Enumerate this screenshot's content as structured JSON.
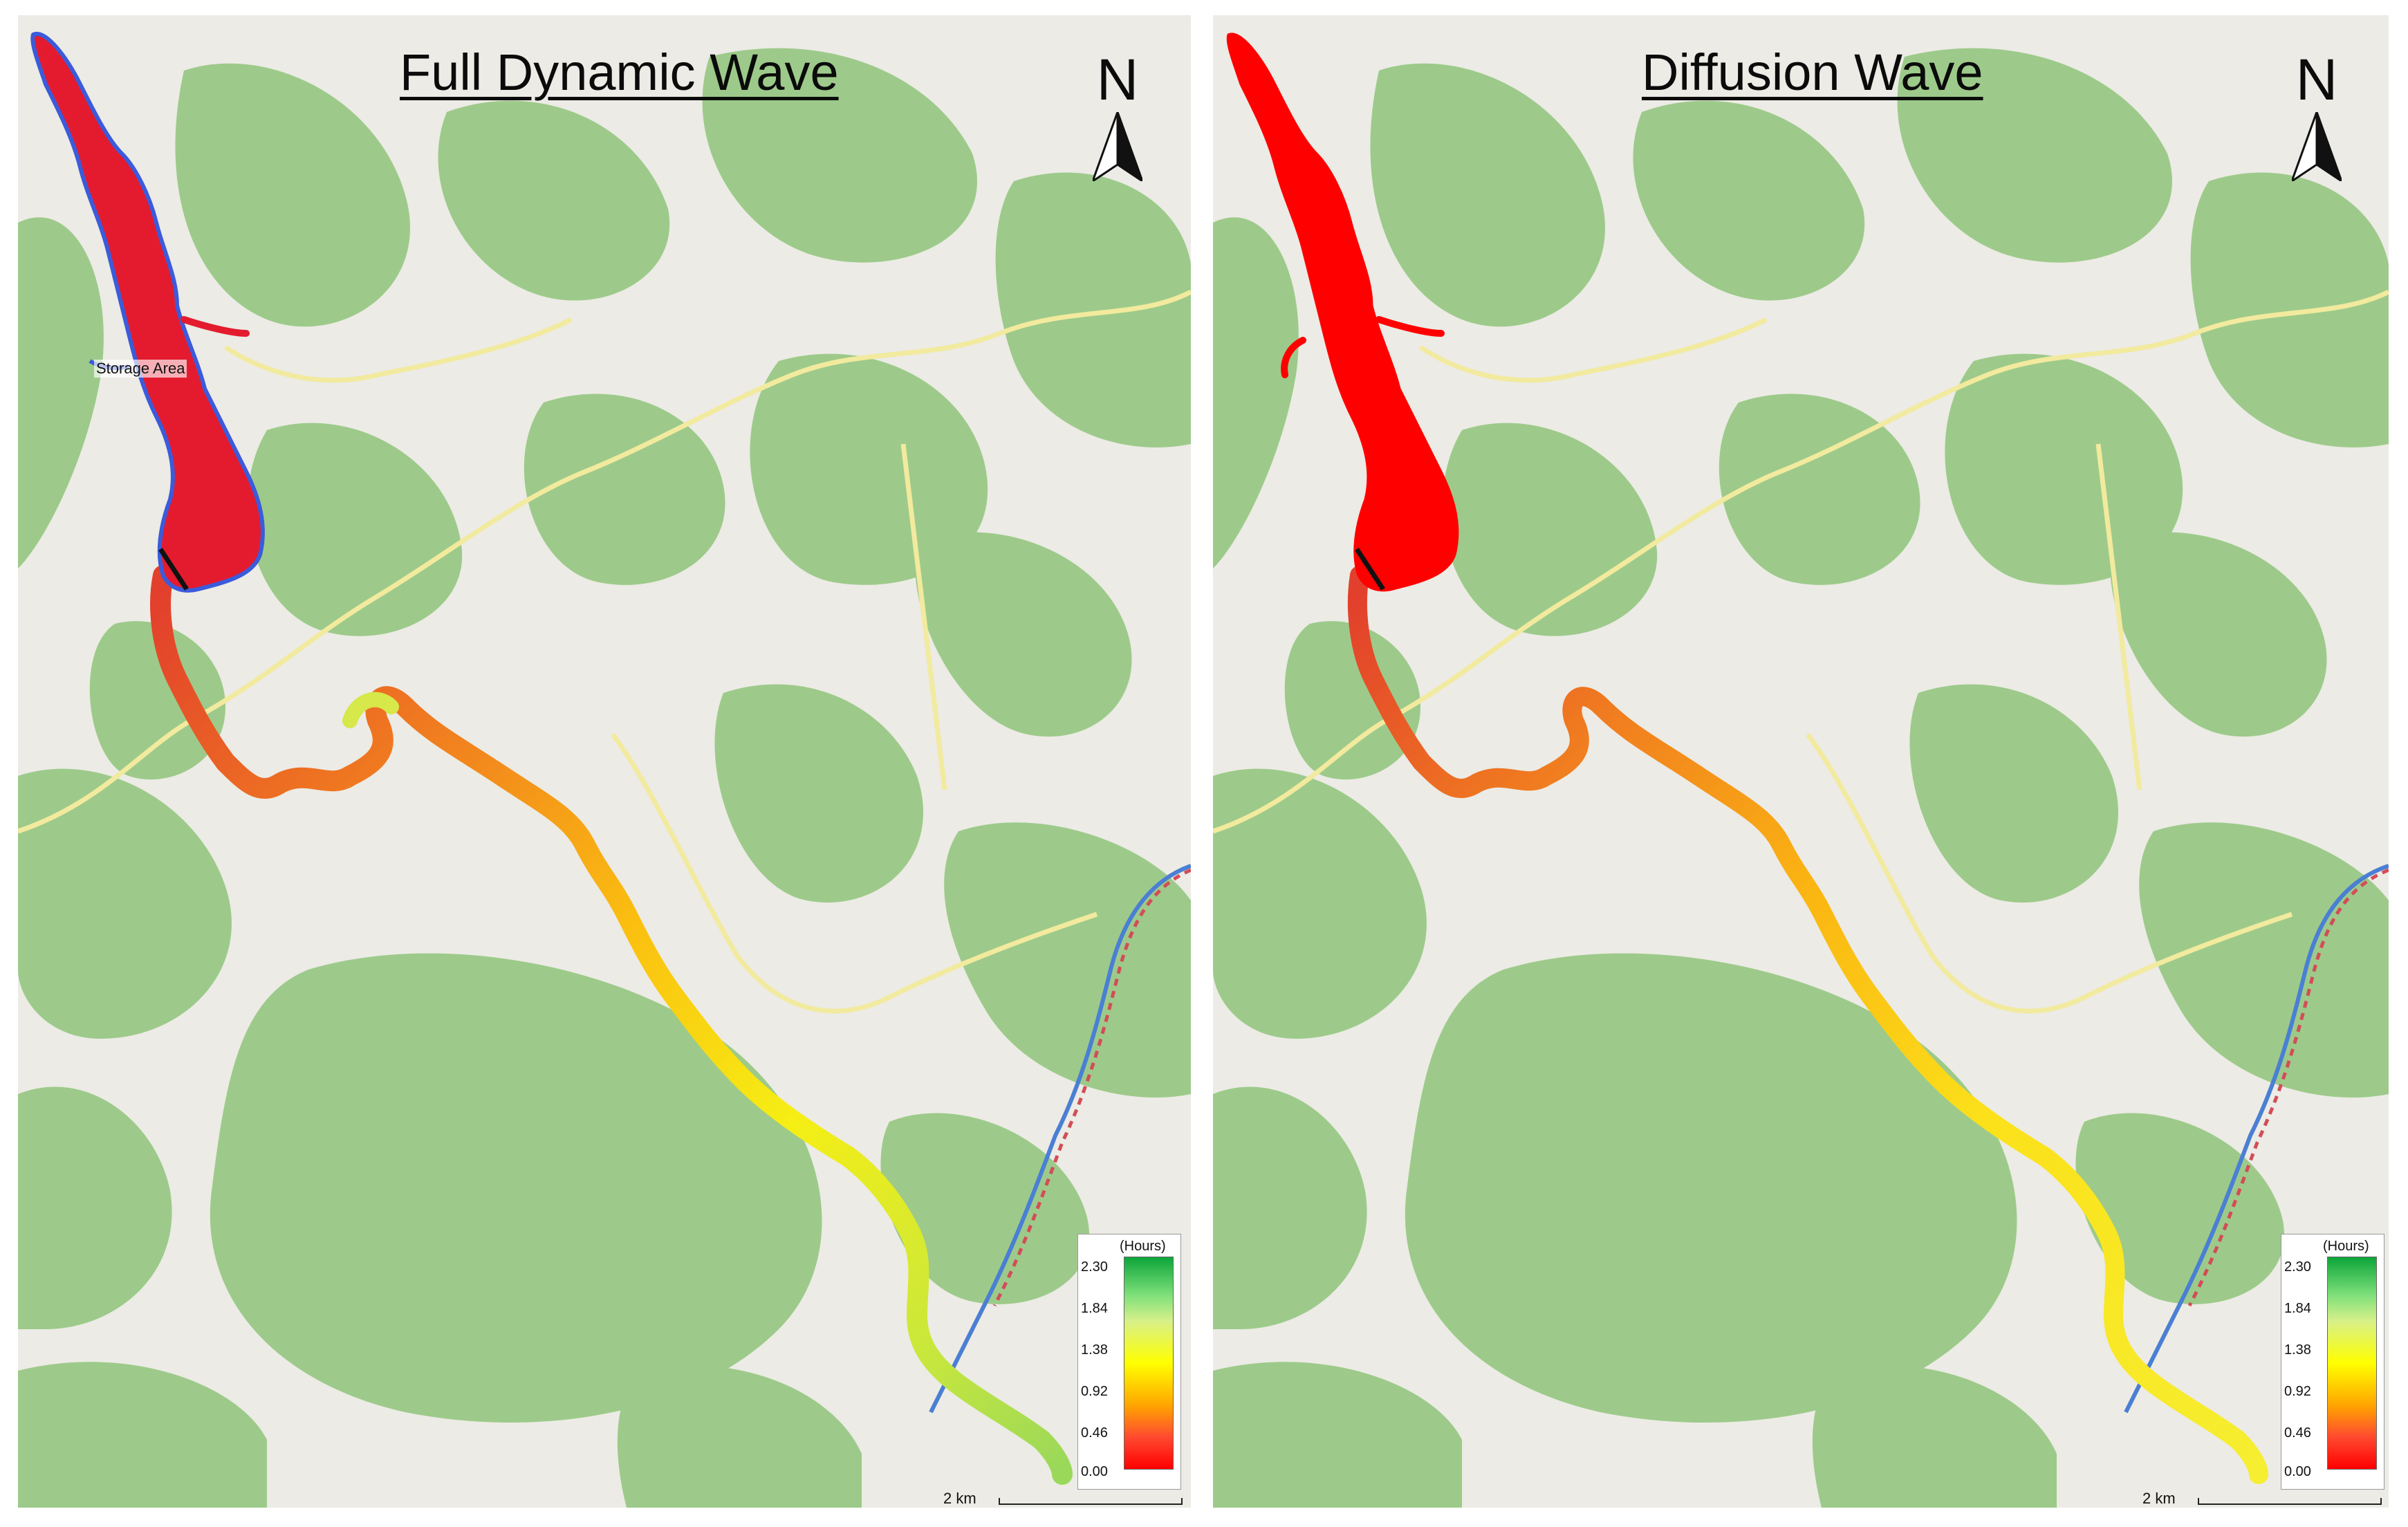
{
  "panels": [
    {
      "title": "Full Dynamic Wave",
      "north_label": "N",
      "storage_label": "Storage Area",
      "legend": {
        "unit": "(Hours)",
        "ticks": [
          "2.30",
          "1.84",
          "1.38",
          "0.92",
          "0.46",
          "0.00"
        ],
        "colors": [
          "#0ca53a",
          "#7fe07a",
          "#ffff00",
          "#ffa500",
          "#ff4a30",
          "#ff0000"
        ]
      },
      "scale_label": "2 km",
      "reservoir_color": "#e41b2e",
      "reservoir_outline": "#3b5bdb"
    },
    {
      "title": "Diffusion Wave",
      "north_label": "N",
      "legend": {
        "unit": "(Hours)",
        "ticks": [
          "2.30",
          "1.84",
          "1.38",
          "0.92",
          "0.46",
          "0.00"
        ],
        "colors": [
          "#0ca53a",
          "#7fe07a",
          "#ffff00",
          "#ffa500",
          "#ff4a30",
          "#ff0000"
        ]
      },
      "scale_label": "2 km",
      "reservoir_color": "#ff0000"
    }
  ],
  "map_colors": {
    "background": "#ecebe5",
    "forest": "#9dca8a",
    "road": "#f2ea9e",
    "river": "#4a7fd4",
    "border": "#d24d57"
  }
}
